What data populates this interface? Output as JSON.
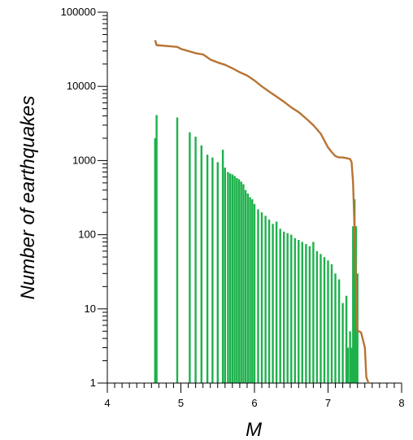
{
  "chart_data": {
    "type": "bar",
    "title": "",
    "xlabel": "M",
    "ylabel": "Number of earthquakes",
    "x_scale": "linear",
    "y_scale": "log",
    "xlim": [
      4,
      8
    ],
    "ylim": [
      1,
      100000
    ],
    "x_ticks": [
      4,
      5,
      6,
      7,
      8
    ],
    "x_tick_labels": [
      "4",
      "5",
      "6",
      "7",
      "8"
    ],
    "y_ticks": [
      1,
      10,
      100,
      1000,
      10000,
      100000
    ],
    "y_tick_labels": [
      "1",
      "10",
      "100",
      "1000",
      "10000",
      "100000"
    ],
    "grid": false,
    "legend": "none",
    "colors": {
      "histogram": "#1db14b",
      "cumulative": "#b87333",
      "axis": "#000000"
    },
    "series": [
      {
        "type": "bar",
        "x": [
          4.65,
          4.67,
          4.95,
          5.12,
          5.2,
          5.28,
          5.36,
          5.43,
          5.5,
          5.57,
          5.6,
          5.64,
          5.67,
          5.7,
          5.73,
          5.76,
          5.79,
          5.82,
          5.85,
          5.88,
          5.91,
          5.94,
          5.97,
          6.0,
          6.05,
          6.1,
          6.15,
          6.2,
          6.25,
          6.3,
          6.35,
          6.4,
          6.45,
          6.5,
          6.55,
          6.6,
          6.65,
          6.7,
          6.75,
          6.8,
          6.85,
          6.9,
          6.95,
          7.0,
          7.05,
          7.1,
          7.15,
          7.2,
          7.25,
          7.27,
          7.3,
          7.32,
          7.34,
          7.36,
          7.38,
          7.4
        ],
        "values": [
          2000,
          4100,
          3800,
          2400,
          2100,
          1600,
          1200,
          1100,
          950,
          1400,
          800,
          700,
          670,
          650,
          620,
          580,
          560,
          520,
          480,
          400,
          360,
          320,
          300,
          260,
          220,
          200,
          180,
          160,
          140,
          150,
          120,
          110,
          105,
          100,
          90,
          85,
          80,
          75,
          70,
          80,
          60,
          55,
          50,
          45,
          40,
          30,
          25,
          12,
          15,
          3,
          5,
          3,
          130,
          300,
          130,
          30
        ]
      },
      {
        "type": "line",
        "x": [
          4.65,
          4.67,
          4.95,
          5.0,
          5.1,
          5.2,
          5.3,
          5.35,
          5.4,
          5.5,
          5.6,
          5.7,
          5.8,
          5.9,
          6.0,
          6.1,
          6.2,
          6.3,
          6.4,
          6.5,
          6.6,
          6.7,
          6.8,
          6.9,
          7.0,
          7.05,
          7.1,
          7.15,
          7.2,
          7.25,
          7.3,
          7.32,
          7.34,
          7.36,
          7.38,
          7.39,
          7.4,
          7.42,
          7.45,
          7.5,
          7.52,
          7.55
        ],
        "values": [
          42000,
          36000,
          34000,
          32000,
          30000,
          28000,
          27000,
          25000,
          23000,
          21000,
          19500,
          17500,
          15500,
          14000,
          12000,
          10000,
          8500,
          7300,
          6200,
          5200,
          4500,
          3700,
          3000,
          2300,
          1500,
          1300,
          1150,
          1100,
          1100,
          1080,
          1050,
          950,
          500,
          120,
          20,
          8,
          5,
          5,
          4.8,
          3,
          1.2,
          1
        ]
      }
    ]
  }
}
